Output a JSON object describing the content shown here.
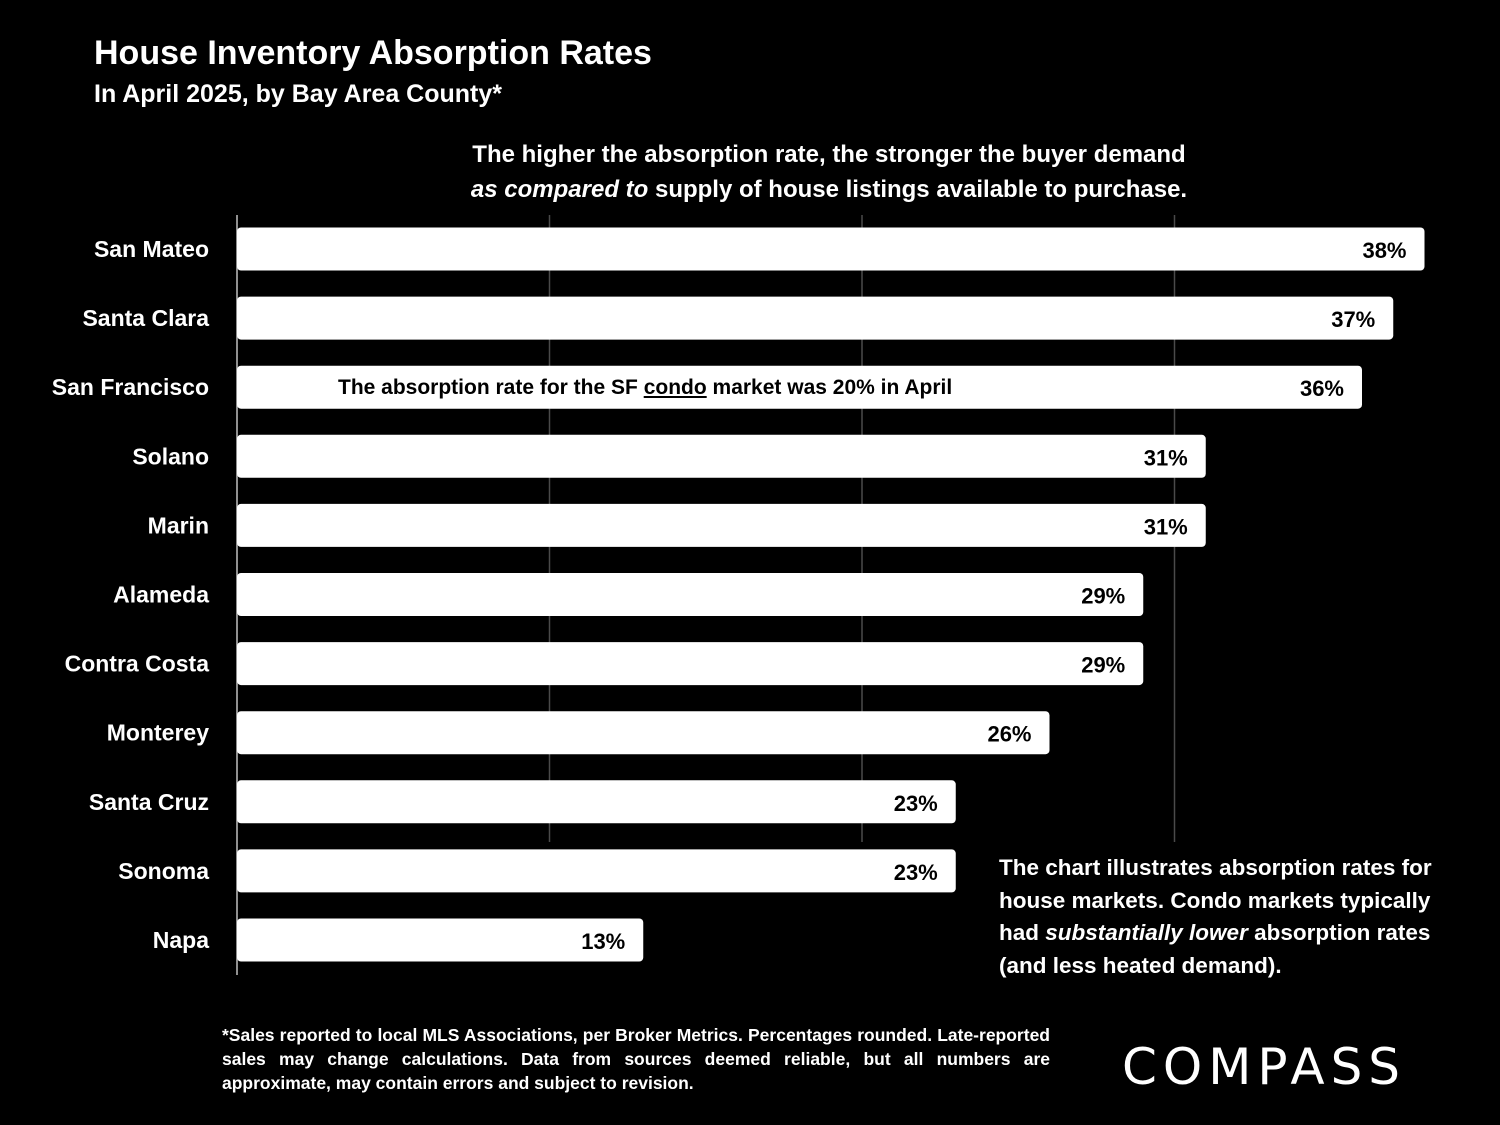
{
  "header": {
    "title": "House Inventory Absorption Rates",
    "subtitle": "In April 2025, by Bay Area County*"
  },
  "annotations": {
    "top_line1": "The higher the absorption rate, the stronger the buyer demand",
    "top_line2_italic": "as compared to",
    "top_line2_rest": " supply of house listings available to purchase.",
    "sf_prefix": "The absorption rate for the SF ",
    "sf_underlined": "condo",
    "sf_suffix": " market was 20% in April",
    "bottom_part1": "The chart illustrates absorption rates for house markets. Condo markets typically had ",
    "bottom_italic": "substantially lower",
    "bottom_part2": " absorption rates (and less heated demand)."
  },
  "footnote": "*Sales reported to local MLS Associations, per Broker Metrics. Percentages rounded. Late-reported sales may change calculations. Data from sources deemed reliable, but all numbers are approximate, may contain errors and subject to revision.",
  "logo": "COMPASS",
  "chart_data": {
    "type": "bar",
    "orientation": "horizontal",
    "categories": [
      "San Mateo",
      "Santa Clara",
      "San Francisco",
      "Solano",
      "Marin",
      "Alameda",
      "Contra Costa",
      "Monterey",
      "Santa Cruz",
      "Sonoma",
      "Napa"
    ],
    "values": [
      38,
      37,
      36,
      31,
      31,
      29,
      29,
      26,
      23,
      23,
      13
    ],
    "value_labels": [
      "38%",
      "37%",
      "36%",
      "31%",
      "31%",
      "29%",
      "29%",
      "26%",
      "23%",
      "23%",
      "13%"
    ],
    "xlim": [
      0,
      40
    ],
    "grid_values": [
      0,
      10,
      20,
      30
    ],
    "grid": true,
    "bar_color": "#ffffff",
    "background": "#000000"
  }
}
